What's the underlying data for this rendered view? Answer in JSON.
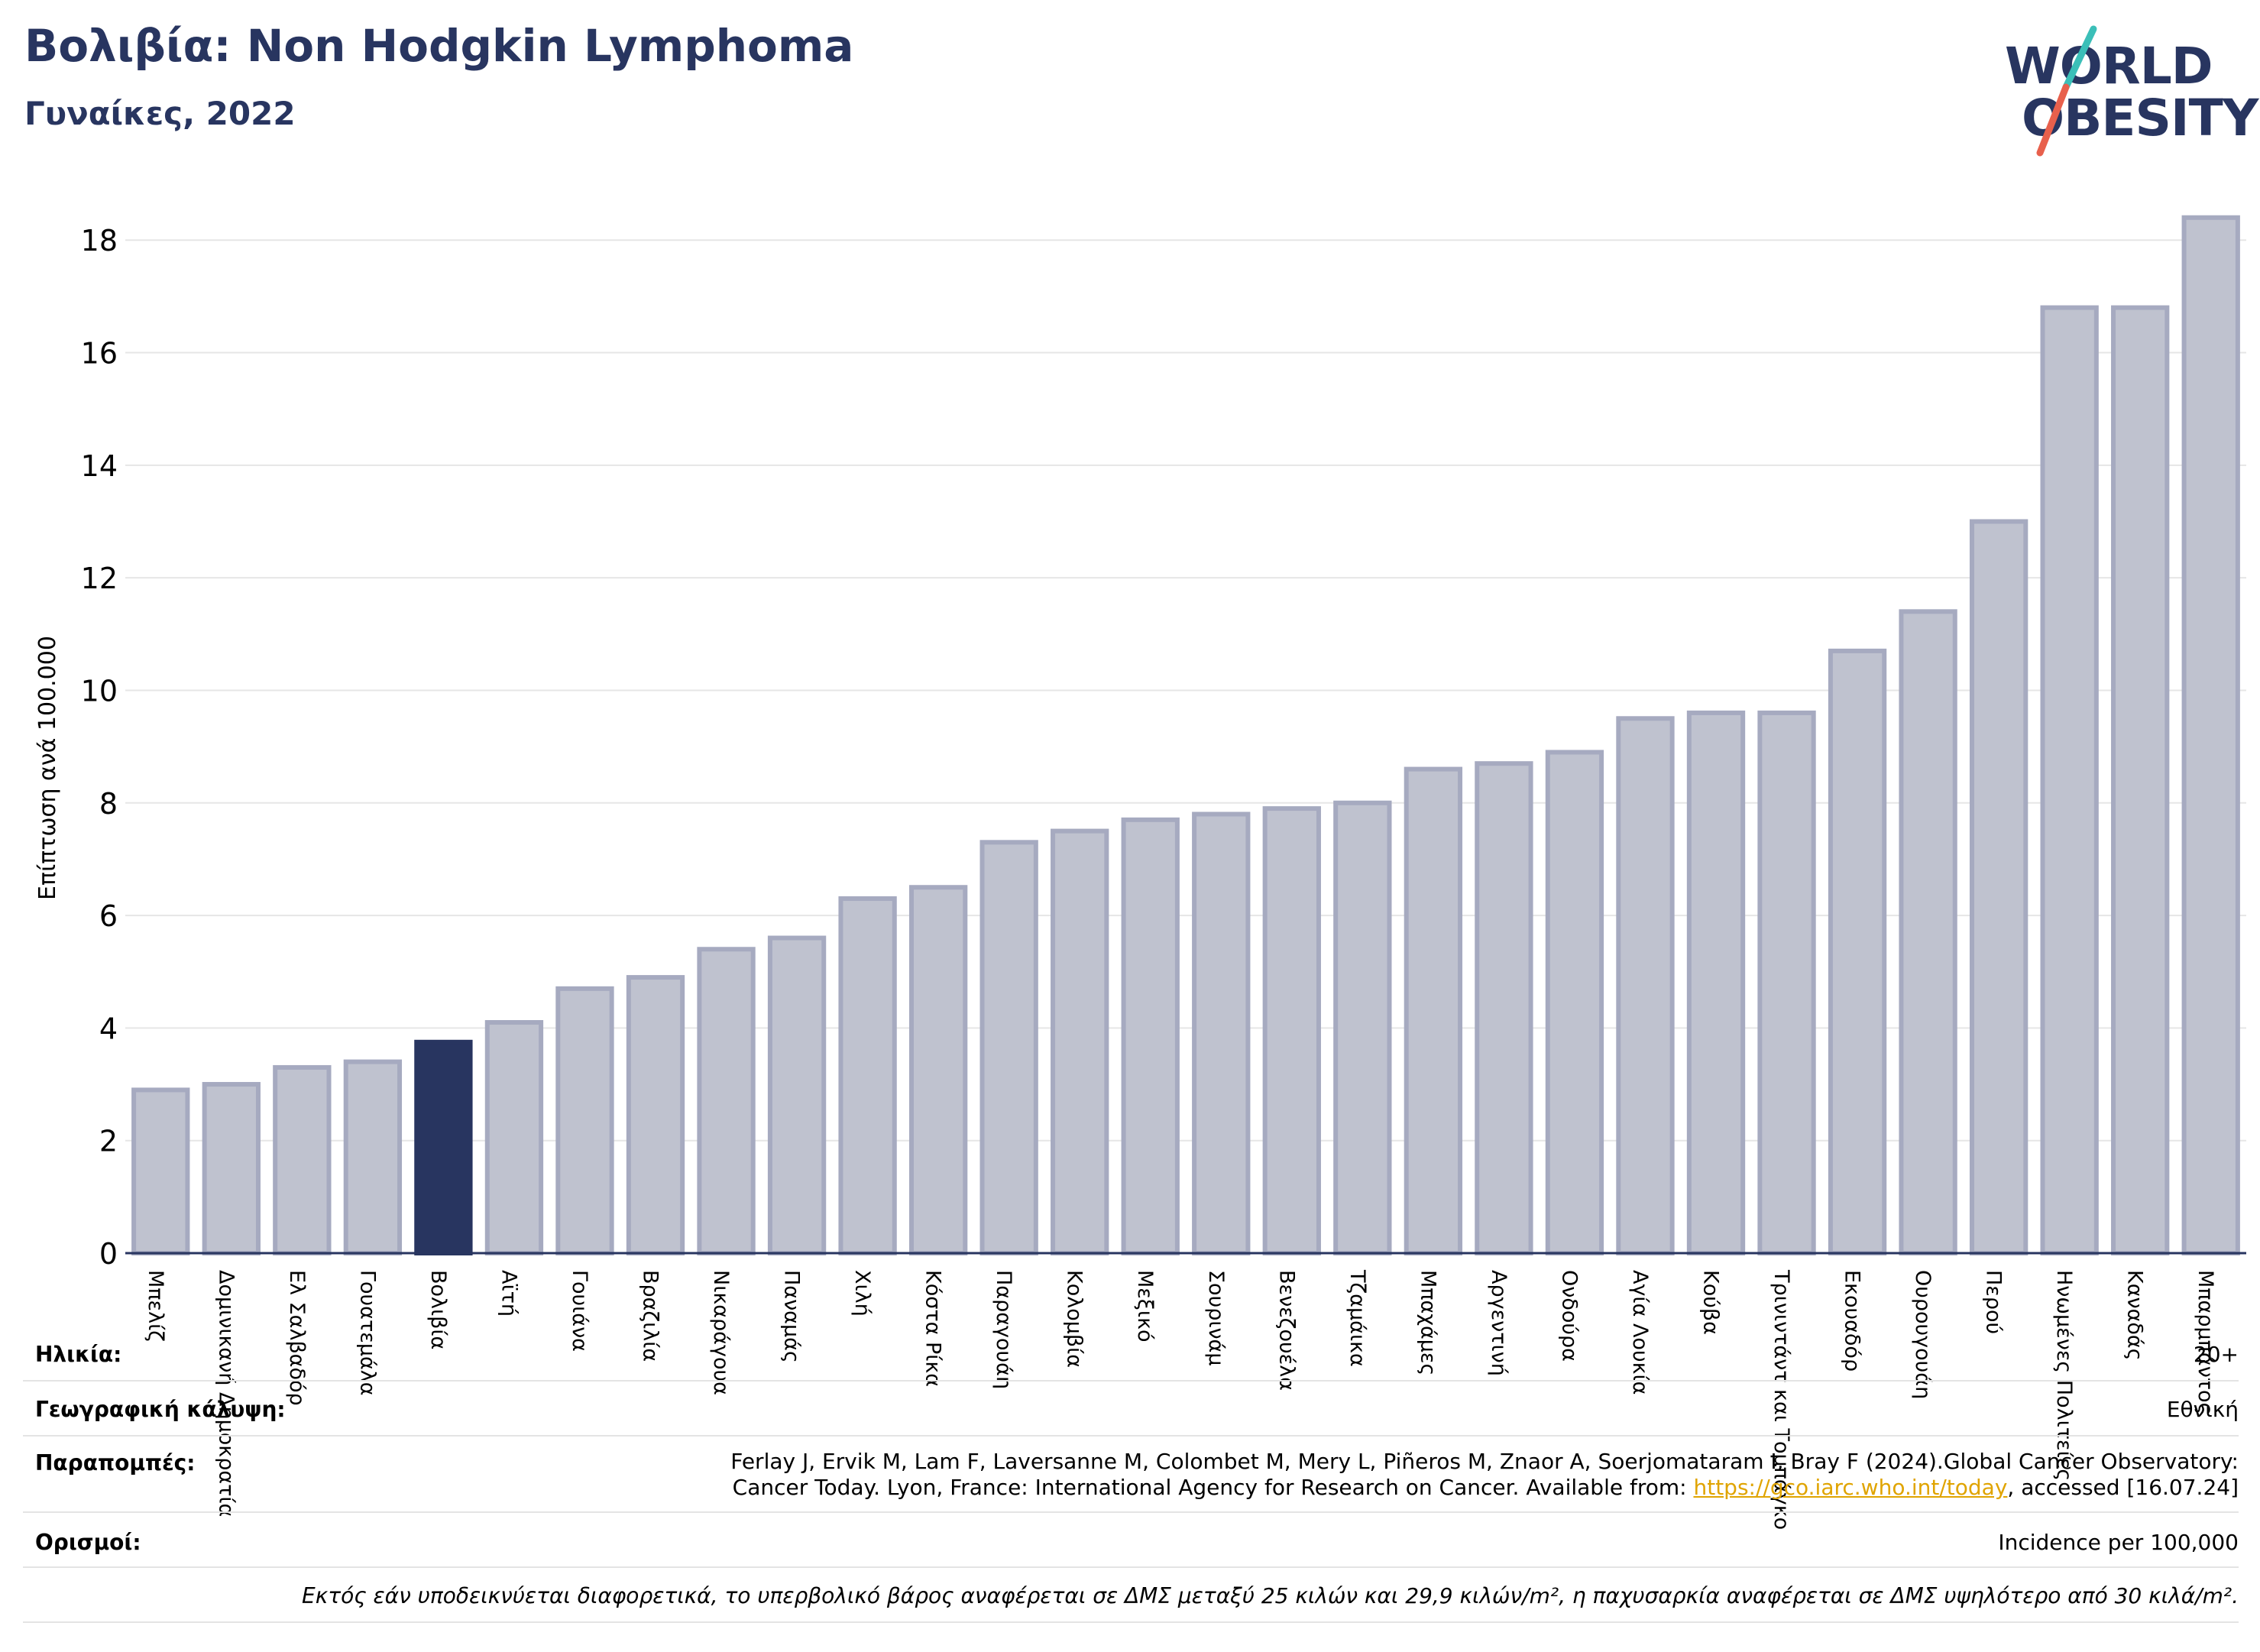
{
  "header": {
    "title": "Βολιβία: Non Hodgkin Lymphoma",
    "subtitle": "Γυναίκες, 2022"
  },
  "logo": {
    "line1": "WORLD",
    "line2": "OBESITY",
    "accent_colors": [
      "#3bbfb8",
      "#e8604c"
    ]
  },
  "chart_data": {
    "type": "bar",
    "ylabel": "Επίπτωση ανά 100.000",
    "ylim": [
      0,
      18.6
    ],
    "yticks": [
      0,
      2,
      4,
      6,
      8,
      10,
      12,
      14,
      16,
      18
    ],
    "grid": true,
    "highlight": "Βολιβία",
    "colors": {
      "bar": "#bfc2cf",
      "bar_edge": "#a6aac0",
      "highlight": "#283560",
      "axis": "#283560"
    },
    "categories": [
      "Μπελίζ",
      "Δομινικανή Δημοκρατία",
      "Ελ Σαλβαδόρ",
      "Γουατεμάλα",
      "Βολιβία",
      "Αϊτή",
      "Γουιάνα",
      "Βραζιλία",
      "Νικαράγουα",
      "Παναμάς",
      "Χιλή",
      "Κόστα Ρίκα",
      "Παραγουάη",
      "Κολομβία",
      "Μεξικό",
      "Σουρινάμ",
      "Βενεζουέλα",
      "Τζαμάικα",
      "Μπαχάμες",
      "Αργεντινή",
      "Ονδούρα",
      "Αγία Λουκία",
      "Κούβα",
      "Τρινιντάντ και Τομπάγκο",
      "Εκουαδόρ",
      "Ουρουγουάη",
      "Περού",
      "Ηνωμένες Πολιτείες",
      "Καναδάς",
      "Μπαρμπάντος"
    ],
    "values": [
      2.9,
      3.0,
      3.3,
      3.4,
      3.75,
      4.1,
      4.7,
      4.9,
      5.4,
      5.6,
      6.3,
      6.5,
      7.3,
      7.5,
      7.7,
      7.8,
      7.9,
      8.0,
      8.6,
      8.7,
      8.9,
      9.5,
      9.6,
      9.6,
      10.7,
      11.4,
      13.0,
      16.8,
      16.8,
      18.4
    ]
  },
  "footer": {
    "age_label": "Ηλικία:",
    "age_value": "20+",
    "coverage_label": "Γεωγραφική κάλυψη:",
    "coverage_value": "Εθνική",
    "references_label": "Παραπομπές:",
    "references_line1": "Ferlay J, Ervik M, Lam F, Laversanne M, Colombet M, Mery L, Piñeros M, Znaor A, Soerjomataram I, Bray F (2024).Global Cancer Observatory:",
    "references_line2_pre": "Cancer Today. Lyon, France: International Agency for Research on Cancer. Available from: ",
    "references_link": "https://gco.iarc.who.int/today",
    "references_line2_post": ", accessed [16.07.24]",
    "definitions_label": "Ορισμοί:",
    "definitions_value": "Incidence per 100,000",
    "note": "Εκτός εάν υποδεικνύεται διαφορετικά, το υπερβολικό βάρος αναφέρεται σε ΔΜΣ μεταξύ 25 κιλών και 29,9 κιλών/m², η παχυσαρκία αναφέρεται σε ΔΜΣ υψηλότερο από 30 κιλά/m²."
  }
}
